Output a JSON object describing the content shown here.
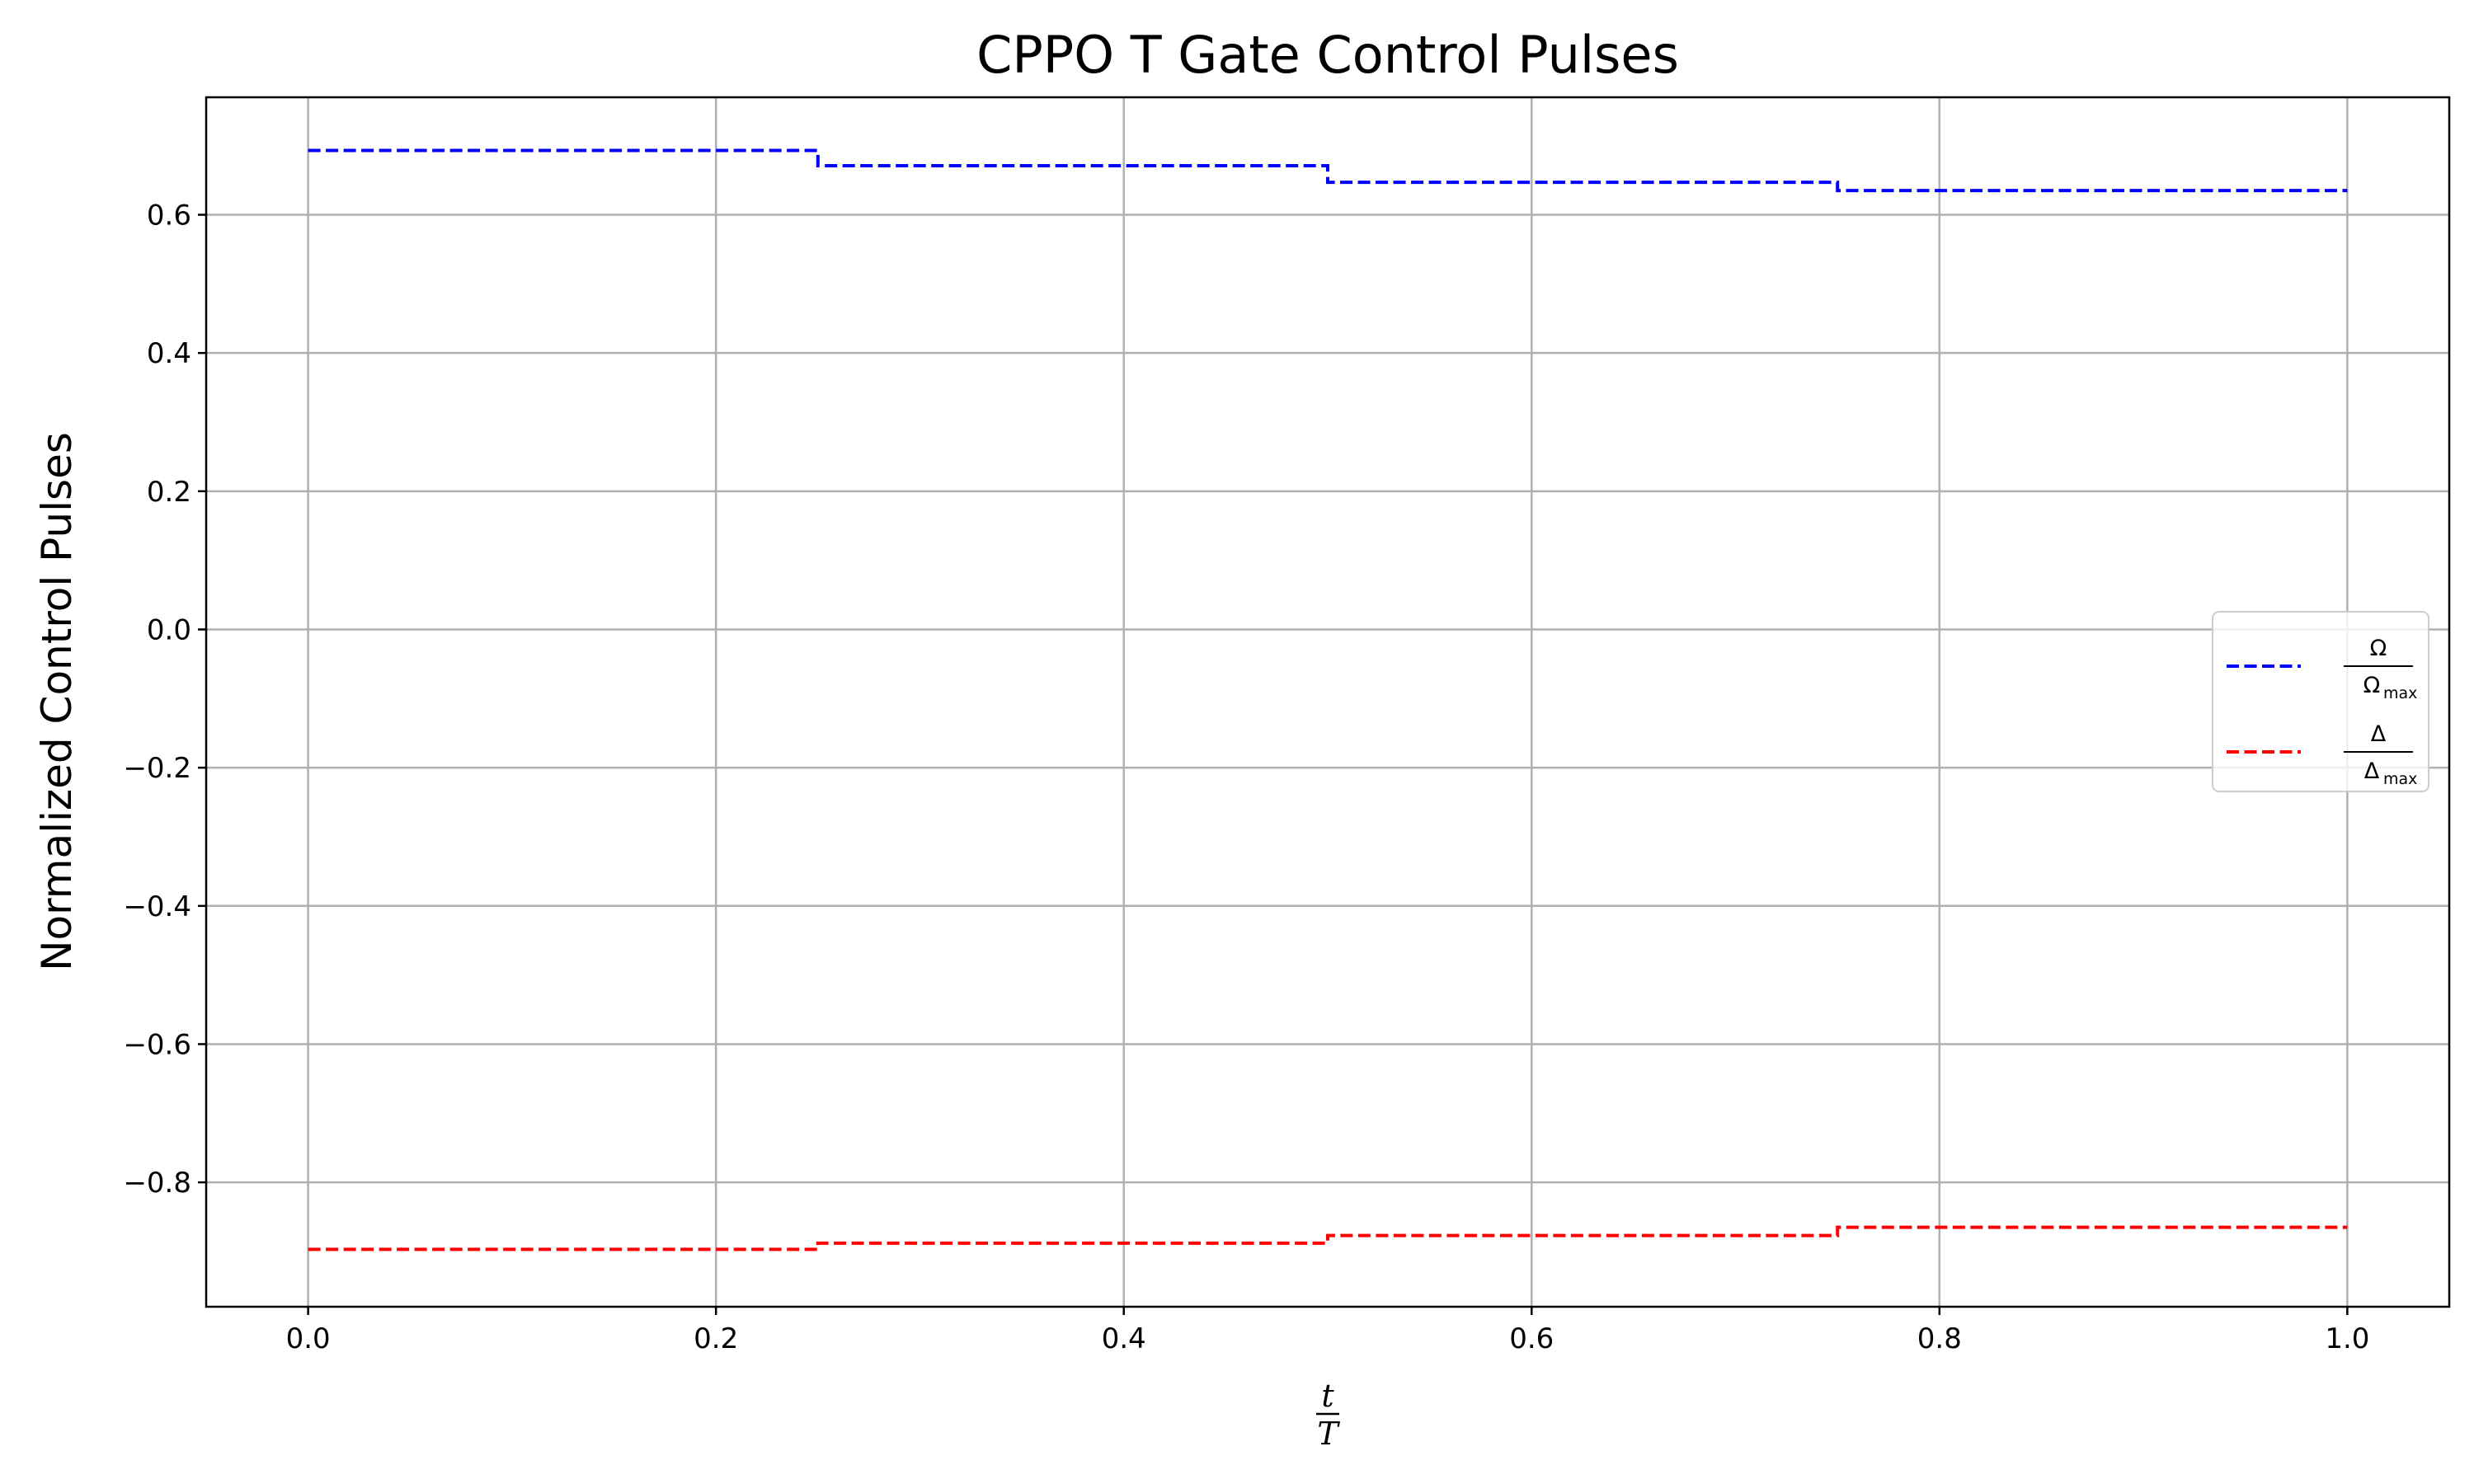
{
  "chart_data": {
    "type": "line",
    "drawstyle": "steps-post",
    "title": "CPPO T Gate Control Pulses",
    "ylabel": "Normalized Control Pulses",
    "xlabel": {
      "numerator": "t",
      "denominator": "T"
    },
    "xlim": [
      -0.05,
      1.05
    ],
    "ylim": [
      -0.98,
      0.77
    ],
    "xticks": [
      0.0,
      0.2,
      0.4,
      0.6,
      0.8,
      1.0
    ],
    "xtick_labels": [
      "0.0",
      "0.2",
      "0.4",
      "0.6",
      "0.8",
      "1.0"
    ],
    "yticks": [
      -0.8,
      -0.6,
      -0.4,
      -0.2,
      0.0,
      0.2,
      0.4,
      0.6
    ],
    "ytick_labels": [
      "−0.8",
      "−0.6",
      "−0.4",
      "−0.2",
      "0.0",
      "0.2",
      "0.4",
      "0.6"
    ],
    "grid": true,
    "legend_position": "center-right",
    "series": [
      {
        "legend_numerator": "Ω",
        "legend_denominator": "Ω",
        "legend_subscript": "max",
        "color": "#0000ff",
        "linestyle": "dashed",
        "x": [
          0.0,
          0.25,
          0.5,
          0.75,
          1.0
        ],
        "y": [
          0.693,
          0.671,
          0.647,
          0.635,
          0.635
        ]
      },
      {
        "legend_numerator": "Δ",
        "legend_denominator": "Δ",
        "legend_subscript": "max",
        "color": "#ff0000",
        "linestyle": "dashed",
        "x": [
          0.0,
          0.25,
          0.5,
          0.75,
          1.0
        ],
        "y": [
          -0.897,
          -0.888,
          -0.877,
          -0.865,
          -0.865
        ]
      }
    ]
  }
}
